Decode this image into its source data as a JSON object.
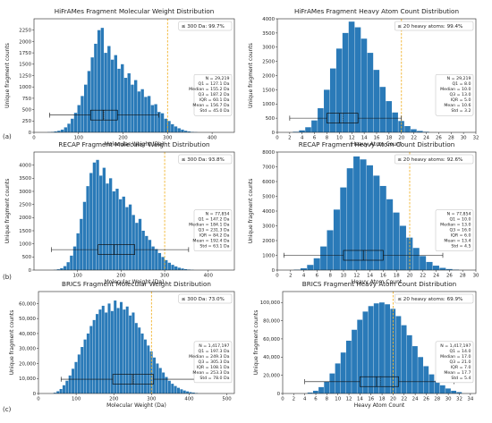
{
  "panel_labels": [
    "(a)",
    "(b)",
    "(c)"
  ],
  "colors": {
    "bar": "#2a7ab8",
    "threshold": "#f2b531",
    "box": "#111111"
  },
  "chart_data": [
    {
      "type": "bar",
      "title": "HiFrAMes Fragment Molecular Weight Distribution",
      "xlabel": "Molecular Weight (Da)",
      "ylabel": "Unique fragment counts",
      "xlim": [
        0,
        450
      ],
      "ylim": [
        0,
        2500
      ],
      "xticks": [
        0,
        100,
        200,
        300,
        400
      ],
      "xtick_labels": [
        "0",
        "100",
        "200",
        "300",
        "400"
      ],
      "yticks": [
        0,
        250,
        500,
        750,
        1000,
        1250,
        1500,
        1750,
        2000,
        2250
      ],
      "ytick_labels": [
        "0",
        "250",
        "500",
        "750",
        "1000",
        "1250",
        "1500",
        "1750",
        "2000",
        "2250"
      ],
      "bin_start": 30,
      "bin_width": 7.5,
      "values": [
        5,
        10,
        20,
        35,
        60,
        110,
        190,
        300,
        430,
        600,
        800,
        1050,
        1350,
        1650,
        1950,
        2250,
        2300,
        1750,
        1900,
        1600,
        1700,
        1400,
        1500,
        1200,
        1300,
        1050,
        1150,
        900,
        950,
        780,
        800,
        600,
        620,
        450,
        420,
        300,
        250,
        180,
        130,
        90,
        60,
        35,
        20,
        10,
        5
      ],
      "threshold": 300,
      "threshold_text": "≤ 300 Da: 99.7%",
      "box": {
        "whisker_low": 35,
        "q1": 127.1,
        "median": 155.2,
        "mean": 156.7,
        "q3": 187.2,
        "whisker_high": 280,
        "y": 380
      },
      "stats": [
        "N = 29,219",
        "Q1 = 127.1 Da",
        "Median = 155.2 Da",
        "Q3 = 187.2 Da",
        "IQR = 60.1 Da",
        "Mean = 156.7 Da",
        "Std = 45.0 Da"
      ]
    },
    {
      "type": "bar",
      "title": "HiFrAMes Fragment Heavy Atom Count Distribution",
      "xlabel": "Heavy Atom Count",
      "ylabel": "Unique fragment counts",
      "xlim": [
        0,
        32
      ],
      "ylim": [
        0,
        4000
      ],
      "xticks": [
        0,
        2,
        4,
        6,
        8,
        10,
        12,
        14,
        16,
        18,
        20,
        22,
        24,
        26,
        28,
        30,
        32
      ],
      "xtick_labels": [
        "0",
        "2",
        "4",
        "6",
        "8",
        "10",
        "12",
        "14",
        "16",
        "18",
        "20",
        "22",
        "24",
        "26",
        "28",
        "30",
        "32"
      ],
      "yticks": [
        0,
        500,
        1000,
        1500,
        2000,
        2500,
        3000,
        3500,
        4000
      ],
      "ytick_labels": [
        "0",
        "500",
        "1000",
        "1500",
        "2000",
        "2500",
        "3000",
        "3500",
        "4000"
      ],
      "bin_start": 2.5,
      "bin_width": 1,
      "values": [
        20,
        70,
        180,
        420,
        850,
        1500,
        2250,
        2950,
        3500,
        3900,
        3700,
        3300,
        2800,
        2200,
        1600,
        1100,
        700,
        400,
        220,
        110,
        50,
        20
      ],
      "threshold": 20,
      "threshold_text": "≤ 20 heavy atoms: 99.4%",
      "box": {
        "whisker_low": 2,
        "q1": 8,
        "median": 10,
        "mean": 10.6,
        "q3": 13,
        "whisker_high": 20,
        "y": 500
      },
      "stats": [
        "N = 29,219",
        "Q1 = 8.0",
        "Median = 10.0",
        "Q3 = 13.0",
        "IQR = 5.0",
        "Mean = 10.6",
        "Std = 3.2"
      ]
    },
    {
      "type": "bar",
      "title": "RECAP Fragment Molecular Weight Distribution",
      "xlabel": "Molecular Weight (Da)",
      "ylabel": "Unique fragment counts",
      "xlim": [
        0,
        460
      ],
      "ylim": [
        0,
        4500
      ],
      "xticks": [
        100,
        200,
        300,
        400
      ],
      "xtick_labels": [
        "100",
        "200",
        "300",
        "400"
      ],
      "yticks": [
        0,
        500,
        1000,
        1500,
        2000,
        2500,
        3000,
        3500,
        4000
      ],
      "ytick_labels": [
        "0",
        "500",
        "1000",
        "1500",
        "2000",
        "2500",
        "3000",
        "3500",
        "4000"
      ],
      "bin_start": 45,
      "bin_width": 7.5,
      "values": [
        10,
        30,
        70,
        150,
        300,
        550,
        900,
        1400,
        1950,
        2600,
        3200,
        3700,
        4100,
        4200,
        3600,
        3900,
        3300,
        3500,
        3000,
        3100,
        2700,
        2800,
        2400,
        2500,
        2100,
        1800,
        1950,
        1500,
        1300,
        1150,
        900,
        800,
        650,
        500,
        380,
        280,
        200,
        140,
        90,
        60,
        35,
        20,
        10
      ],
      "threshold": 300,
      "threshold_text": "≤ 300 Da: 93.8%",
      "box": {
        "whisker_low": 40,
        "q1": 147.2,
        "median": 184.1,
        "mean": 192.4,
        "q3": 231.3,
        "whisker_high": 355,
        "y": 780
      },
      "stats": [
        "N = 77,854",
        "Q1 = 147.2 Da",
        "Median = 184.1 Da",
        "Q3 = 231.3 Da",
        "IQR = 84.2 Da",
        "Mean = 192.4 Da",
        "Std = 63.1 Da"
      ]
    },
    {
      "type": "bar",
      "title": "RECAP Fragment Heavy Atom Count Distribution",
      "xlabel": "Heavy Atom Count",
      "ylabel": "Unique fragment counts",
      "xlim": [
        0,
        30
      ],
      "ylim": [
        0,
        8000
      ],
      "xticks": [
        0,
        2,
        4,
        6,
        8,
        10,
        12,
        14,
        16,
        18,
        20,
        22,
        24,
        26,
        28,
        30
      ],
      "xtick_labels": [
        "0",
        "2",
        "4",
        "6",
        "8",
        "10",
        "12",
        "14",
        "16",
        "18",
        "20",
        "22",
        "24",
        "26",
        "28",
        "30"
      ],
      "yticks": [
        0,
        1000,
        2000,
        3000,
        4000,
        5000,
        6000,
        7000,
        8000
      ],
      "ytick_labels": [
        "0",
        "1000",
        "2000",
        "3000",
        "4000",
        "5000",
        "6000",
        "7000",
        "8000"
      ],
      "bin_start": 2.5,
      "bin_width": 1,
      "values": [
        30,
        120,
        350,
        800,
        1600,
        2700,
        4100,
        5600,
        6900,
        7700,
        7500,
        7100,
        6400,
        5700,
        4800,
        3900,
        3000,
        2200,
        1500,
        950,
        550,
        300,
        150,
        70,
        30
      ],
      "threshold": 20,
      "threshold_text": "≤ 20 heavy atoms: 92.6%",
      "box": {
        "whisker_low": 1,
        "q1": 10,
        "median": 13,
        "mean": 13.4,
        "q3": 16,
        "whisker_high": 25,
        "y": 1000
      },
      "stats": [
        "N = 77,854",
        "Q1 = 10.0",
        "Median = 13.0",
        "Q3 = 16.0",
        "IQR = 6.0",
        "Mean = 13.4",
        "Std = 4.5"
      ]
    },
    {
      "type": "bar",
      "title": "BRICS Fragment Molecular Weight Distribution",
      "xlabel": "Molecular Weight (Da)",
      "ylabel": "Unique fragment counts",
      "xlim": [
        0,
        520
      ],
      "ylim": [
        0,
        68000
      ],
      "xticks": [
        0,
        100,
        200,
        300,
        400,
        500
      ],
      "xtick_labels": [
        "0",
        "100",
        "200",
        "300",
        "400",
        "500"
      ],
      "yticks": [
        0,
        10000,
        20000,
        30000,
        40000,
        50000,
        60000
      ],
      "ytick_labels": [
        "0",
        "10,000",
        "20,000",
        "30,000",
        "40,000",
        "50,000",
        "60,000"
      ],
      "bin_start": 40,
      "bin_width": 8,
      "values": [
        500,
        1500,
        3000,
        5500,
        8500,
        12000,
        16500,
        21000,
        26000,
        31000,
        36000,
        40000,
        45000,
        49000,
        53000,
        56000,
        58500,
        54000,
        60000,
        55000,
        62000,
        57000,
        61000,
        56000,
        58000,
        52000,
        54000,
        47000,
        44000,
        40000,
        36000,
        32000,
        28000,
        24000,
        20000,
        17000,
        14000,
        11000,
        8500,
        6500,
        5000,
        3800,
        2800,
        2000,
        1400,
        900,
        600,
        300
      ],
      "threshold": 300,
      "threshold_text": "≤ 300 Da: 73.0%",
      "box": {
        "whisker_low": 60,
        "q1": 197.3,
        "median": 249.3,
        "mean": 253.3,
        "q3": 305.3,
        "whisker_high": 465,
        "y": 9500
      },
      "stats": [
        "N = 1,417,197",
        "Q1 = 197.3 Da",
        "Median = 249.3 Da",
        "Q3 = 305.3 Da",
        "IQR = 108.1 Da",
        "Mean = 253.3 Da",
        "Std = 78.0 Da"
      ]
    },
    {
      "type": "bar",
      "title": "BRICS Fragment Heavy Atom Count Distribution",
      "xlabel": "Heavy Atom Count",
      "ylabel": "Unique fragment counts",
      "xlim": [
        0,
        35
      ],
      "ylim": [
        0,
        112000
      ],
      "xticks": [
        0,
        2,
        4,
        6,
        8,
        10,
        12,
        14,
        16,
        18,
        20,
        22,
        24,
        26,
        28,
        30,
        32,
        34
      ],
      "xtick_labels": [
        "0",
        "2",
        "4",
        "6",
        "8",
        "10",
        "12",
        "14",
        "16",
        "18",
        "20",
        "22",
        "24",
        "26",
        "28",
        "30",
        "32",
        "34"
      ],
      "yticks": [
        0,
        20000,
        40000,
        60000,
        80000,
        100000
      ],
      "ytick_labels": [
        "0",
        "20,000",
        "40,000",
        "60,000",
        "80,000",
        "100,000"
      ],
      "bin_start": 4.5,
      "bin_width": 1,
      "values": [
        1000,
        3000,
        7000,
        13000,
        22000,
        33000,
        45000,
        58000,
        70000,
        81000,
        90000,
        96000,
        99000,
        100000,
        98000,
        93000,
        85000,
        75000,
        64000,
        52000,
        40000,
        30000,
        21000,
        14000,
        9000,
        5500,
        3000,
        1500
      ],
      "threshold": 20,
      "threshold_text": "≤ 20 heavy atoms: 69.9%",
      "box": {
        "whisker_low": 4,
        "q1": 14,
        "median": 17,
        "mean": 17.7,
        "q3": 21,
        "whisker_high": 31,
        "y": 13000
      },
      "stats": [
        "N = 1,417,197",
        "Q1 = 14.0",
        "Median = 17.0",
        "Q3 = 21.0",
        "IQR = 7.0",
        "Mean = 17.7",
        "Std = 5.4"
      ]
    }
  ]
}
